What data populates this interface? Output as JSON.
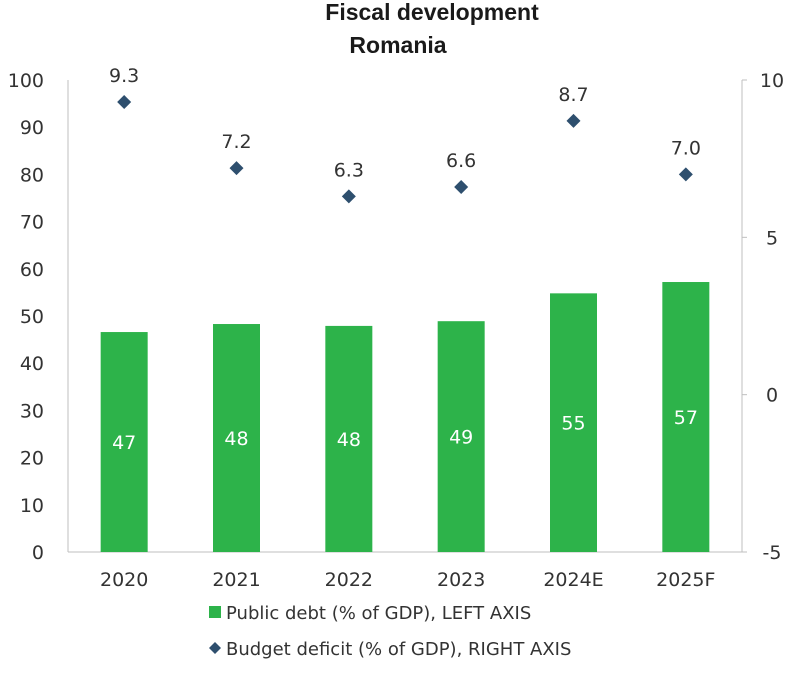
{
  "chart_data": {
    "type": "bar",
    "title": "Fiscal development",
    "subtitle": "Romania",
    "categories": [
      "2020",
      "2021",
      "2022",
      "2023",
      "2024E",
      "2025F"
    ],
    "series": [
      {
        "name": "Public debt (% of GDP), LEFT AXIS",
        "type": "bar",
        "axis": "left",
        "values": [
          46.6,
          48.3,
          47.9,
          48.9,
          54.8,
          57.2
        ],
        "labels": [
          "47",
          "48",
          "48",
          "49",
          "55",
          "57"
        ],
        "color": "#2db34a"
      },
      {
        "name": "Budget deficit (% of GDP), RIGHT AXIS",
        "type": "scatter",
        "axis": "right",
        "marker": "diamond",
        "values": [
          9.3,
          7.2,
          6.3,
          6.6,
          8.7,
          7.0
        ],
        "labels": [
          "9.3",
          "7.2",
          "6.3",
          "6.6",
          "8.7",
          "7.0"
        ],
        "color": "#2e4f6e"
      }
    ],
    "left_axis": {
      "ylim": [
        0,
        100
      ],
      "ticks": [
        "0",
        "10",
        "20",
        "30",
        "40",
        "50",
        "60",
        "70",
        "80",
        "90",
        "100"
      ]
    },
    "right_axis": {
      "ylim": [
        -5,
        10
      ],
      "ticks": [
        "-5",
        "0",
        "5",
        "10"
      ]
    },
    "legend_position": "bottom",
    "grid": false
  }
}
